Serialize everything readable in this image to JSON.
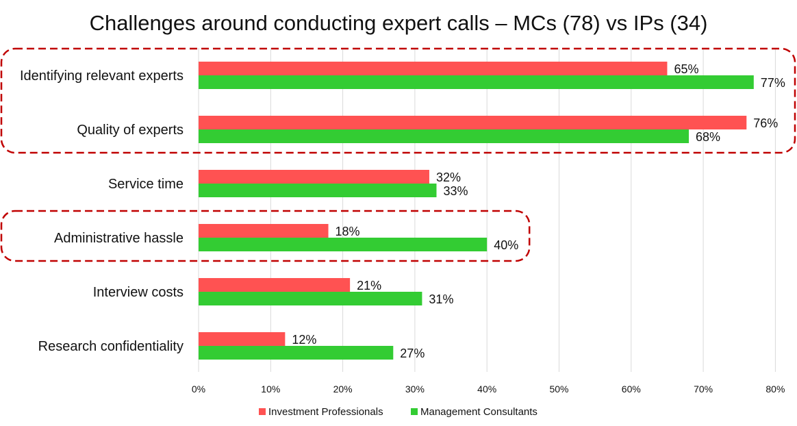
{
  "chart_data": {
    "type": "bar",
    "orientation": "horizontal",
    "title": "Challenges around conducting expert calls – MCs (78) vs IPs (34)",
    "xlabel": "",
    "ylabel": "",
    "categories": [
      "Identifying relevant experts",
      "Quality of experts",
      "Service time",
      "Administrative hassle",
      "Interview costs",
      "Research confidentiality"
    ],
    "series": [
      {
        "name": "Investment Professionals",
        "color": "#ff5252",
        "values": [
          65,
          76,
          32,
          18,
          21,
          12
        ]
      },
      {
        "name": "Management Consultants",
        "color": "#33cc33",
        "values": [
          77,
          68,
          33,
          40,
          31,
          27
        ]
      }
    ],
    "xlim": [
      0,
      80
    ],
    "xticks": [
      0,
      10,
      20,
      30,
      40,
      50,
      60,
      70,
      80
    ],
    "tick_suffix": "%",
    "value_suffix": "%",
    "grid": "vertical",
    "legend_position": "bottom",
    "highlight_color": "#c00000",
    "highlight_groups": [
      [
        "Identifying relevant experts",
        "Quality of experts"
      ],
      [
        "Administrative hassle"
      ]
    ]
  }
}
